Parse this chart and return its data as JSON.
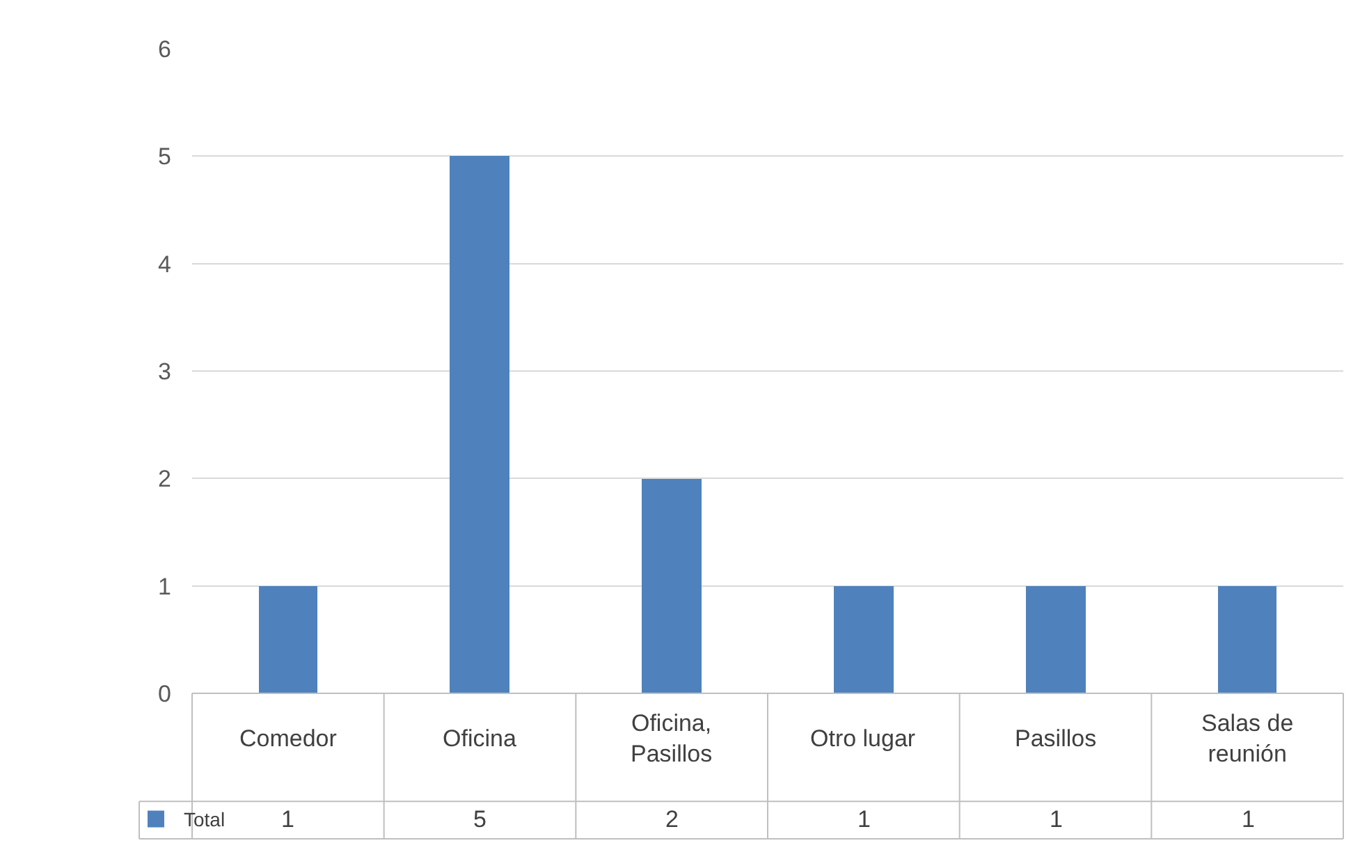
{
  "chart_data": {
    "type": "bar",
    "categories": [
      "Comedor",
      "Oficina",
      "Oficina, Pasillos",
      "Otro lugar",
      "Pasillos",
      "Salas de reunión"
    ],
    "series": [
      {
        "name": "Total",
        "color": "#4f81bd",
        "values": [
          1,
          5,
          2,
          1,
          1,
          1
        ]
      }
    ],
    "ylim": [
      0,
      6
    ],
    "yticks": [
      0,
      1,
      2,
      3,
      4,
      5,
      6
    ],
    "grid": "y",
    "legend": "bottom left",
    "data_labels": true
  }
}
